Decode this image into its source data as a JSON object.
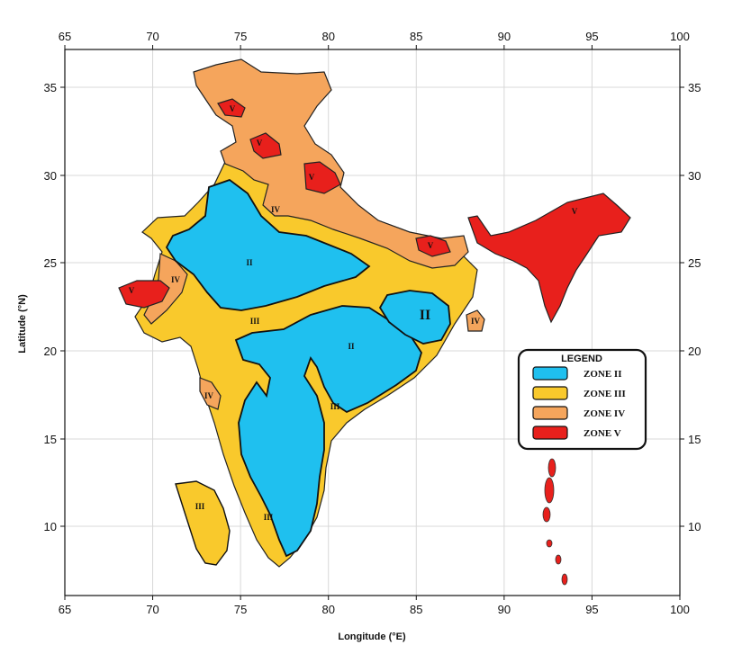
{
  "map": {
    "x_axis": {
      "label": "Longitude (°E)",
      "ticks": [
        "65",
        "70",
        "75",
        "80",
        "85",
        "90",
        "95",
        "100"
      ]
    },
    "y_axis": {
      "label": "Latitude (°N)",
      "ticks": [
        "10",
        "15",
        "20",
        "25",
        "30",
        "35"
      ]
    },
    "grid": true,
    "colors": {
      "zone_ii": "#1fc0ef",
      "zone_iii": "#f9c92c",
      "zone_iv": "#f5a55c",
      "zone_v": "#e8201c"
    },
    "zone_labels": [
      {
        "text": "V",
        "zone": "zone_v"
      },
      {
        "text": "V",
        "zone": "zone_v"
      },
      {
        "text": "V",
        "zone": "zone_v"
      },
      {
        "text": "V",
        "zone": "zone_v"
      },
      {
        "text": "V",
        "zone": "zone_v"
      },
      {
        "text": "V",
        "zone": "zone_v"
      },
      {
        "text": "IV",
        "zone": "zone_iv"
      },
      {
        "text": "IV",
        "zone": "zone_iv"
      },
      {
        "text": "IV",
        "zone": "zone_iv"
      },
      {
        "text": "IV",
        "zone": "zone_iv"
      },
      {
        "text": "III",
        "zone": "zone_iii"
      },
      {
        "text": "III",
        "zone": "zone_iii"
      },
      {
        "text": "III",
        "zone": "zone_iii"
      },
      {
        "text": "III",
        "zone": "zone_iii"
      },
      {
        "text": "II",
        "zone": "zone_ii"
      },
      {
        "text": "II",
        "zone": "zone_ii"
      },
      {
        "text": "II",
        "zone": "zone_ii"
      }
    ]
  },
  "legend": {
    "title": "LEGEND",
    "items": [
      {
        "label": "ZONE II",
        "color": "#1fc0ef"
      },
      {
        "label": "ZONE III",
        "color": "#f9c92c"
      },
      {
        "label": "ZONE IV",
        "color": "#f5a55c"
      },
      {
        "label": "ZONE V",
        "color": "#e8201c"
      }
    ]
  }
}
